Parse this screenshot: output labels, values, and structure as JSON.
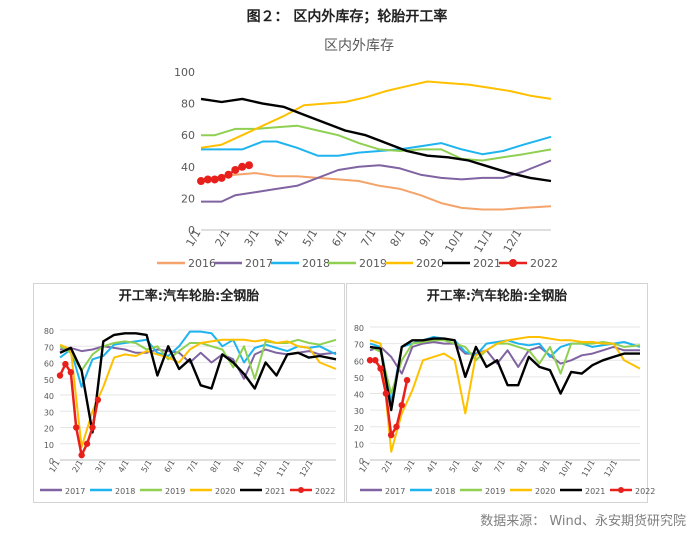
{
  "figure_title": "图２： 区内外库存；轮胎开工率",
  "source_note": "数据来源： Wind、永安期货研究院",
  "colors": {
    "2016": "#f4a46a",
    "2017": "#8064a2",
    "2018": "#1fb4ef",
    "2019": "#8fd052",
    "2020": "#ffc000",
    "2021": "#000000",
    "2022": "#e8201c"
  },
  "chart_data": [
    {
      "type": "line",
      "title": "区内外库存",
      "ylim": [
        0,
        100
      ],
      "yticks": [
        0,
        20,
        40,
        60,
        80,
        100
      ],
      "x_ticks": [
        "1/1",
        "2/1",
        "3/1",
        "4/1",
        "5/1",
        "6/1",
        "7/1",
        "8/1",
        "9/1",
        "10/1",
        "11/1",
        "12/1"
      ],
      "x_domain": [
        1,
        52
      ],
      "legend_position": "bottom",
      "series": [
        {
          "name": "2016",
          "x": [
            1,
            3,
            6,
            9,
            12,
            15,
            18,
            21,
            24,
            27,
            30,
            33,
            36,
            39,
            42,
            45,
            48,
            52
          ],
          "values": [
            31,
            33,
            35,
            36,
            34,
            34,
            33,
            32,
            31,
            28,
            26,
            22,
            17,
            14,
            13,
            13,
            14,
            15
          ]
        },
        {
          "name": "2017",
          "x": [
            1,
            4,
            6,
            9,
            12,
            15,
            18,
            21,
            24,
            27,
            30,
            33,
            36,
            39,
            42,
            45,
            48,
            52
          ],
          "values": [
            18,
            18,
            22,
            24,
            26,
            28,
            33,
            38,
            40,
            41,
            39,
            35,
            33,
            32,
            33,
            33,
            37,
            44
          ]
        },
        {
          "name": "2018",
          "x": [
            1,
            4,
            7,
            10,
            12,
            15,
            18,
            21,
            24,
            27,
            30,
            33,
            36,
            39,
            42,
            45,
            48,
            52
          ],
          "values": [
            51,
            51,
            51,
            56,
            56,
            52,
            47,
            47,
            49,
            50,
            51,
            53,
            55,
            51,
            48,
            50,
            54,
            59
          ]
        },
        {
          "name": "2019",
          "x": [
            1,
            3,
            6,
            9,
            12,
            15,
            18,
            21,
            24,
            27,
            30,
            33,
            36,
            39,
            42,
            45,
            48,
            52
          ],
          "values": [
            60,
            60,
            64,
            64,
            65,
            66,
            63,
            60,
            55,
            51,
            50,
            51,
            51,
            45,
            44,
            46,
            48,
            51
          ]
        },
        {
          "name": "2020",
          "x": [
            1,
            4,
            7,
            10,
            13,
            16,
            19,
            22,
            25,
            28,
            31,
            34,
            37,
            40,
            43,
            46,
            49,
            52
          ],
          "values": [
            52,
            54,
            60,
            66,
            72,
            79,
            80,
            81,
            84,
            88,
            91,
            94,
            93,
            92,
            90,
            88,
            85,
            83
          ]
        },
        {
          "name": "2021",
          "x": [
            1,
            4,
            7,
            10,
            13,
            16,
            19,
            22,
            25,
            28,
            31,
            34,
            37,
            40,
            43,
            46,
            49,
            52
          ],
          "values": [
            83,
            81,
            83,
            80,
            78,
            73,
            68,
            63,
            60,
            55,
            50,
            47,
            46,
            44,
            40,
            36,
            33,
            31
          ]
        },
        {
          "name": "2022",
          "x": [
            1,
            2,
            3,
            4,
            5,
            6,
            7,
            8
          ],
          "values": [
            31,
            32,
            32,
            33,
            35,
            38,
            40,
            41
          ]
        }
      ]
    },
    {
      "type": "line",
      "title": "开工率:汽车轮胎:全钢胎",
      "ylim": [
        0,
        80
      ],
      "yticks": [
        0,
        10,
        20,
        30,
        40,
        50,
        60,
        70,
        80
      ],
      "x_ticks": [
        "1/1",
        "2/1",
        "3/1",
        "4/1",
        "5/1",
        "6/1",
        "7/1",
        "8/1",
        "9/1",
        "10/1",
        "11/1",
        "12/1"
      ],
      "x_domain": [
        1,
        52
      ],
      "legend_position": "bottom",
      "series": [
        {
          "name": "2017",
          "x": [
            1,
            3,
            5,
            7,
            9,
            11,
            13,
            15,
            17,
            19,
            21,
            23,
            25,
            27,
            29,
            31,
            33,
            35,
            37,
            39,
            41,
            43,
            45,
            47,
            49,
            52
          ],
          "values": [
            68,
            69,
            67,
            68,
            70,
            69,
            68,
            66,
            66,
            68,
            67,
            66,
            60,
            66,
            60,
            65,
            62,
            50,
            65,
            68,
            66,
            65,
            66,
            67,
            65,
            66
          ]
        },
        {
          "name": "2018",
          "x": [
            1,
            3,
            5,
            7,
            9,
            11,
            13,
            15,
            17,
            19,
            21,
            23,
            25,
            27,
            29,
            31,
            33,
            35,
            37,
            39,
            41,
            43,
            45,
            47,
            49,
            52
          ],
          "values": [
            63,
            68,
            45,
            62,
            64,
            71,
            72,
            73,
            74,
            66,
            64,
            70,
            79,
            79,
            78,
            70,
            74,
            60,
            69,
            71,
            69,
            67,
            70,
            69,
            70,
            65
          ]
        },
        {
          "name": "2019",
          "x": [
            1,
            3,
            5,
            7,
            9,
            11,
            13,
            15,
            17,
            19,
            21,
            23,
            25,
            27,
            29,
            31,
            33,
            35,
            37,
            39,
            41,
            43,
            45,
            47,
            49,
            52
          ],
          "values": [
            70,
            66,
            55,
            65,
            70,
            72,
            73,
            72,
            68,
            70,
            62,
            67,
            72,
            72,
            70,
            68,
            57,
            70,
            50,
            73,
            72,
            72,
            74,
            72,
            71,
            74
          ]
        },
        {
          "name": "2020",
          "x": [
            1,
            3,
            5,
            7,
            9,
            11,
            13,
            15,
            17,
            19,
            21,
            23,
            25,
            27,
            29,
            31,
            33,
            35,
            37,
            39,
            41,
            43,
            45,
            47,
            49,
            52
          ],
          "values": [
            71,
            68,
            8,
            30,
            45,
            63,
            65,
            64,
            67,
            65,
            63,
            60,
            68,
            72,
            73,
            74,
            74,
            74,
            73,
            74,
            72,
            73,
            70,
            69,
            60,
            56
          ]
        },
        {
          "name": "2021",
          "x": [
            1,
            3,
            5,
            7,
            9,
            11,
            13,
            15,
            17,
            19,
            21,
            23,
            25,
            27,
            29,
            31,
            33,
            35,
            37,
            39,
            41,
            43,
            45,
            47,
            49,
            52
          ],
          "values": [
            66,
            69,
            55,
            17,
            73,
            77,
            78,
            78,
            77,
            52,
            70,
            56,
            62,
            46,
            44,
            65,
            60,
            53,
            44,
            60,
            52,
            65,
            66,
            63,
            64,
            62
          ]
        },
        {
          "name": "2022",
          "x": [
            1,
            2,
            3,
            4,
            5,
            6,
            7,
            8
          ],
          "values": [
            52,
            59,
            54,
            20,
            3,
            10,
            20,
            37
          ]
        }
      ]
    },
    {
      "type": "line",
      "title": "开工率:汽车轮胎:全钢胎",
      "ylim": [
        0,
        80
      ],
      "yticks": [
        0,
        10,
        20,
        30,
        40,
        50,
        60,
        70,
        80
      ],
      "x_ticks": [
        "1/1",
        "2/1",
        "3/1",
        "4/1",
        "5/1",
        "6/1",
        "7/1",
        "8/1",
        "9/1",
        "10/1",
        "11/1",
        "12/1"
      ],
      "x_domain": [
        1,
        52
      ],
      "legend_position": "bottom",
      "series": [
        {
          "name": "2017",
          "x": [
            1,
            3,
            5,
            7,
            9,
            11,
            13,
            15,
            17,
            19,
            21,
            23,
            25,
            27,
            29,
            31,
            33,
            35,
            37,
            39,
            41,
            43,
            45,
            47,
            49,
            52
          ],
          "values": [
            66,
            68,
            62,
            52,
            68,
            70,
            71,
            70,
            70,
            64,
            64,
            66,
            58,
            66,
            56,
            66,
            68,
            63,
            58,
            60,
            63,
            64,
            66,
            68,
            66,
            66
          ]
        },
        {
          "name": "2018",
          "x": [
            1,
            3,
            5,
            7,
            9,
            11,
            13,
            15,
            17,
            19,
            21,
            23,
            25,
            27,
            29,
            31,
            33,
            35,
            37,
            39,
            41,
            43,
            45,
            47,
            49,
            52
          ],
          "values": [
            70,
            68,
            35,
            68,
            70,
            72,
            74,
            73,
            72,
            65,
            63,
            70,
            71,
            72,
            70,
            69,
            70,
            62,
            68,
            70,
            70,
            68,
            69,
            70,
            71,
            68
          ]
        },
        {
          "name": "2019",
          "x": [
            1,
            3,
            5,
            7,
            9,
            11,
            13,
            15,
            17,
            19,
            21,
            23,
            25,
            27,
            29,
            31,
            33,
            35,
            37,
            39,
            41,
            43,
            45,
            47,
            49,
            52
          ],
          "values": [
            68,
            65,
            40,
            60,
            70,
            71,
            72,
            72,
            70,
            68,
            60,
            66,
            70,
            70,
            68,
            66,
            58,
            68,
            52,
            70,
            70,
            70,
            71,
            70,
            68,
            69
          ]
        },
        {
          "name": "2020",
          "x": [
            1,
            3,
            5,
            7,
            9,
            11,
            13,
            15,
            17,
            19,
            21,
            23,
            25,
            27,
            29,
            31,
            33,
            35,
            37,
            39,
            41,
            43,
            45,
            47,
            49,
            52
          ],
          "values": [
            72,
            70,
            5,
            28,
            42,
            60,
            62,
            64,
            60,
            28,
            63,
            66,
            70,
            72,
            73,
            74,
            74,
            73,
            72,
            72,
            71,
            71,
            70,
            70,
            60,
            55
          ]
        },
        {
          "name": "2021",
          "x": [
            1,
            3,
            5,
            7,
            9,
            11,
            13,
            15,
            17,
            19,
            21,
            23,
            25,
            27,
            29,
            31,
            33,
            35,
            37,
            39,
            41,
            43,
            45,
            47,
            49,
            52
          ],
          "values": [
            68,
            67,
            30,
            68,
            72,
            72,
            73,
            73,
            72,
            50,
            68,
            56,
            60,
            45,
            45,
            62,
            56,
            54,
            40,
            53,
            52,
            57,
            60,
            62,
            64,
            64
          ]
        },
        {
          "name": "2022",
          "x": [
            1,
            2,
            3,
            4,
            5,
            6,
            7,
            8
          ],
          "values": [
            60,
            60,
            55,
            40,
            15,
            20,
            33,
            48
          ]
        }
      ]
    }
  ]
}
